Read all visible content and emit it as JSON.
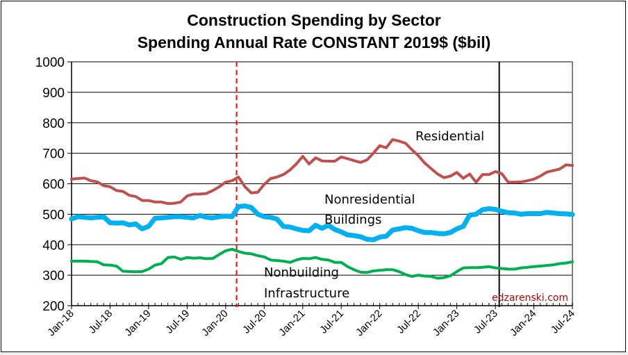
{
  "chart_data": {
    "type": "line",
    "title": "Construction Spending by Sector",
    "subtitle": "Spending Annual Rate CONSTANT 2019$ ($bil)",
    "xlabel": "",
    "ylabel": "",
    "ylim": [
      200,
      1000
    ],
    "yticks": [
      "1000",
      "900",
      "800",
      "700",
      "600",
      "500",
      "400",
      "300",
      "200"
    ],
    "ytick_values": [
      1000,
      900,
      800,
      700,
      600,
      500,
      400,
      300,
      200
    ],
    "grid": "horizontal",
    "legend": "none (inline annotations)",
    "x_start": "Jan-18",
    "x_end": "Jul-24",
    "x_frequency": "monthly",
    "x_count": 79,
    "xtick_labels": [
      "Jan-18",
      "Jul-18",
      "Jan-19",
      "Jul-19",
      "Jan-20",
      "Jul-20",
      "Jan-21",
      "Jul-21",
      "Jan-22",
      "Jul-22",
      "Jan-23",
      "Jul-23",
      "Jan-24",
      "Jul-24"
    ],
    "xtick_every_months": 6,
    "series": [
      {
        "name": "Residential",
        "color": "#C0504D",
        "values": [
          615,
          617,
          619,
          610,
          606,
          594,
          590,
          578,
          575,
          562,
          558,
          545,
          545,
          540,
          540,
          535,
          536,
          540,
          560,
          566,
          566,
          568,
          578,
          590,
          605,
          610,
          622,
          590,
          570,
          572,
          598,
          617,
          622,
          630,
          645,
          665,
          690,
          665,
          685,
          675,
          674,
          674,
          688,
          682,
          676,
          670,
          678,
          700,
          725,
          718,
          745,
          740,
          733,
          712,
          692,
          668,
          650,
          632,
          620,
          625,
          637,
          618,
          632,
          605,
          630,
          630,
          640,
          633,
          605,
          605,
          606,
          610,
          615,
          625,
          638,
          643,
          648,
          662,
          660
        ]
      },
      {
        "name": "Nonresidential Buildings",
        "color": "#00B0F0",
        "values": [
          485,
          492,
          490,
          488,
          490,
          492,
          472,
          471,
          472,
          465,
          468,
          452,
          460,
          487,
          488,
          490,
          492,
          492,
          490,
          488,
          496,
          490,
          488,
          492,
          494,
          492,
          525,
          527,
          522,
          500,
          492,
          490,
          484,
          460,
          458,
          452,
          447,
          446,
          464,
          454,
          464,
          450,
          442,
          432,
          430,
          426,
          418,
          416,
          425,
          428,
          448,
          452,
          456,
          454,
          446,
          440,
          440,
          437,
          436,
          440,
          452,
          460,
          497,
          500,
          515,
          518,
          516,
          510,
          505,
          504,
          500,
          502,
          502,
          502,
          506,
          504,
          502,
          501,
          499
        ]
      },
      {
        "name": "Nonbuilding Infrastructure",
        "color": "#00B050",
        "values": [
          346,
          346,
          346,
          345,
          344,
          334,
          333,
          330,
          313,
          312,
          311,
          312,
          320,
          333,
          338,
          358,
          360,
          352,
          358,
          356,
          357,
          354,
          355,
          368,
          380,
          385,
          378,
          372,
          370,
          364,
          360,
          350,
          348,
          346,
          342,
          350,
          355,
          354,
          358,
          352,
          350,
          342,
          342,
          328,
          318,
          310,
          309,
          314,
          316,
          318,
          318,
          312,
          302,
          296,
          300,
          297,
          296,
          290,
          292,
          298,
          312,
          324,
          325,
          325,
          326,
          328,
          324,
          322,
          320,
          320,
          324,
          326,
          328,
          330,
          332,
          334,
          338,
          340,
          344
        ]
      }
    ],
    "annotations": {
      "residential": "Residential",
      "nonres_line1": "Nonresidential",
      "nonres_line2": "Buildings",
      "nonbuild_line1": "Nonbuilding",
      "nonbuild_line2": "Infrastructure"
    },
    "reference_lines": [
      {
        "name": "covid-marker",
        "style": "dashed",
        "color": "#FF0000",
        "x_month_index": 25.7
      },
      {
        "name": "data-cutoff-marker",
        "style": "solid",
        "color": "#000000",
        "x_month_index": 66.6
      }
    ],
    "watermark": "edzarenski.com",
    "watermark_color": "#C00000"
  }
}
